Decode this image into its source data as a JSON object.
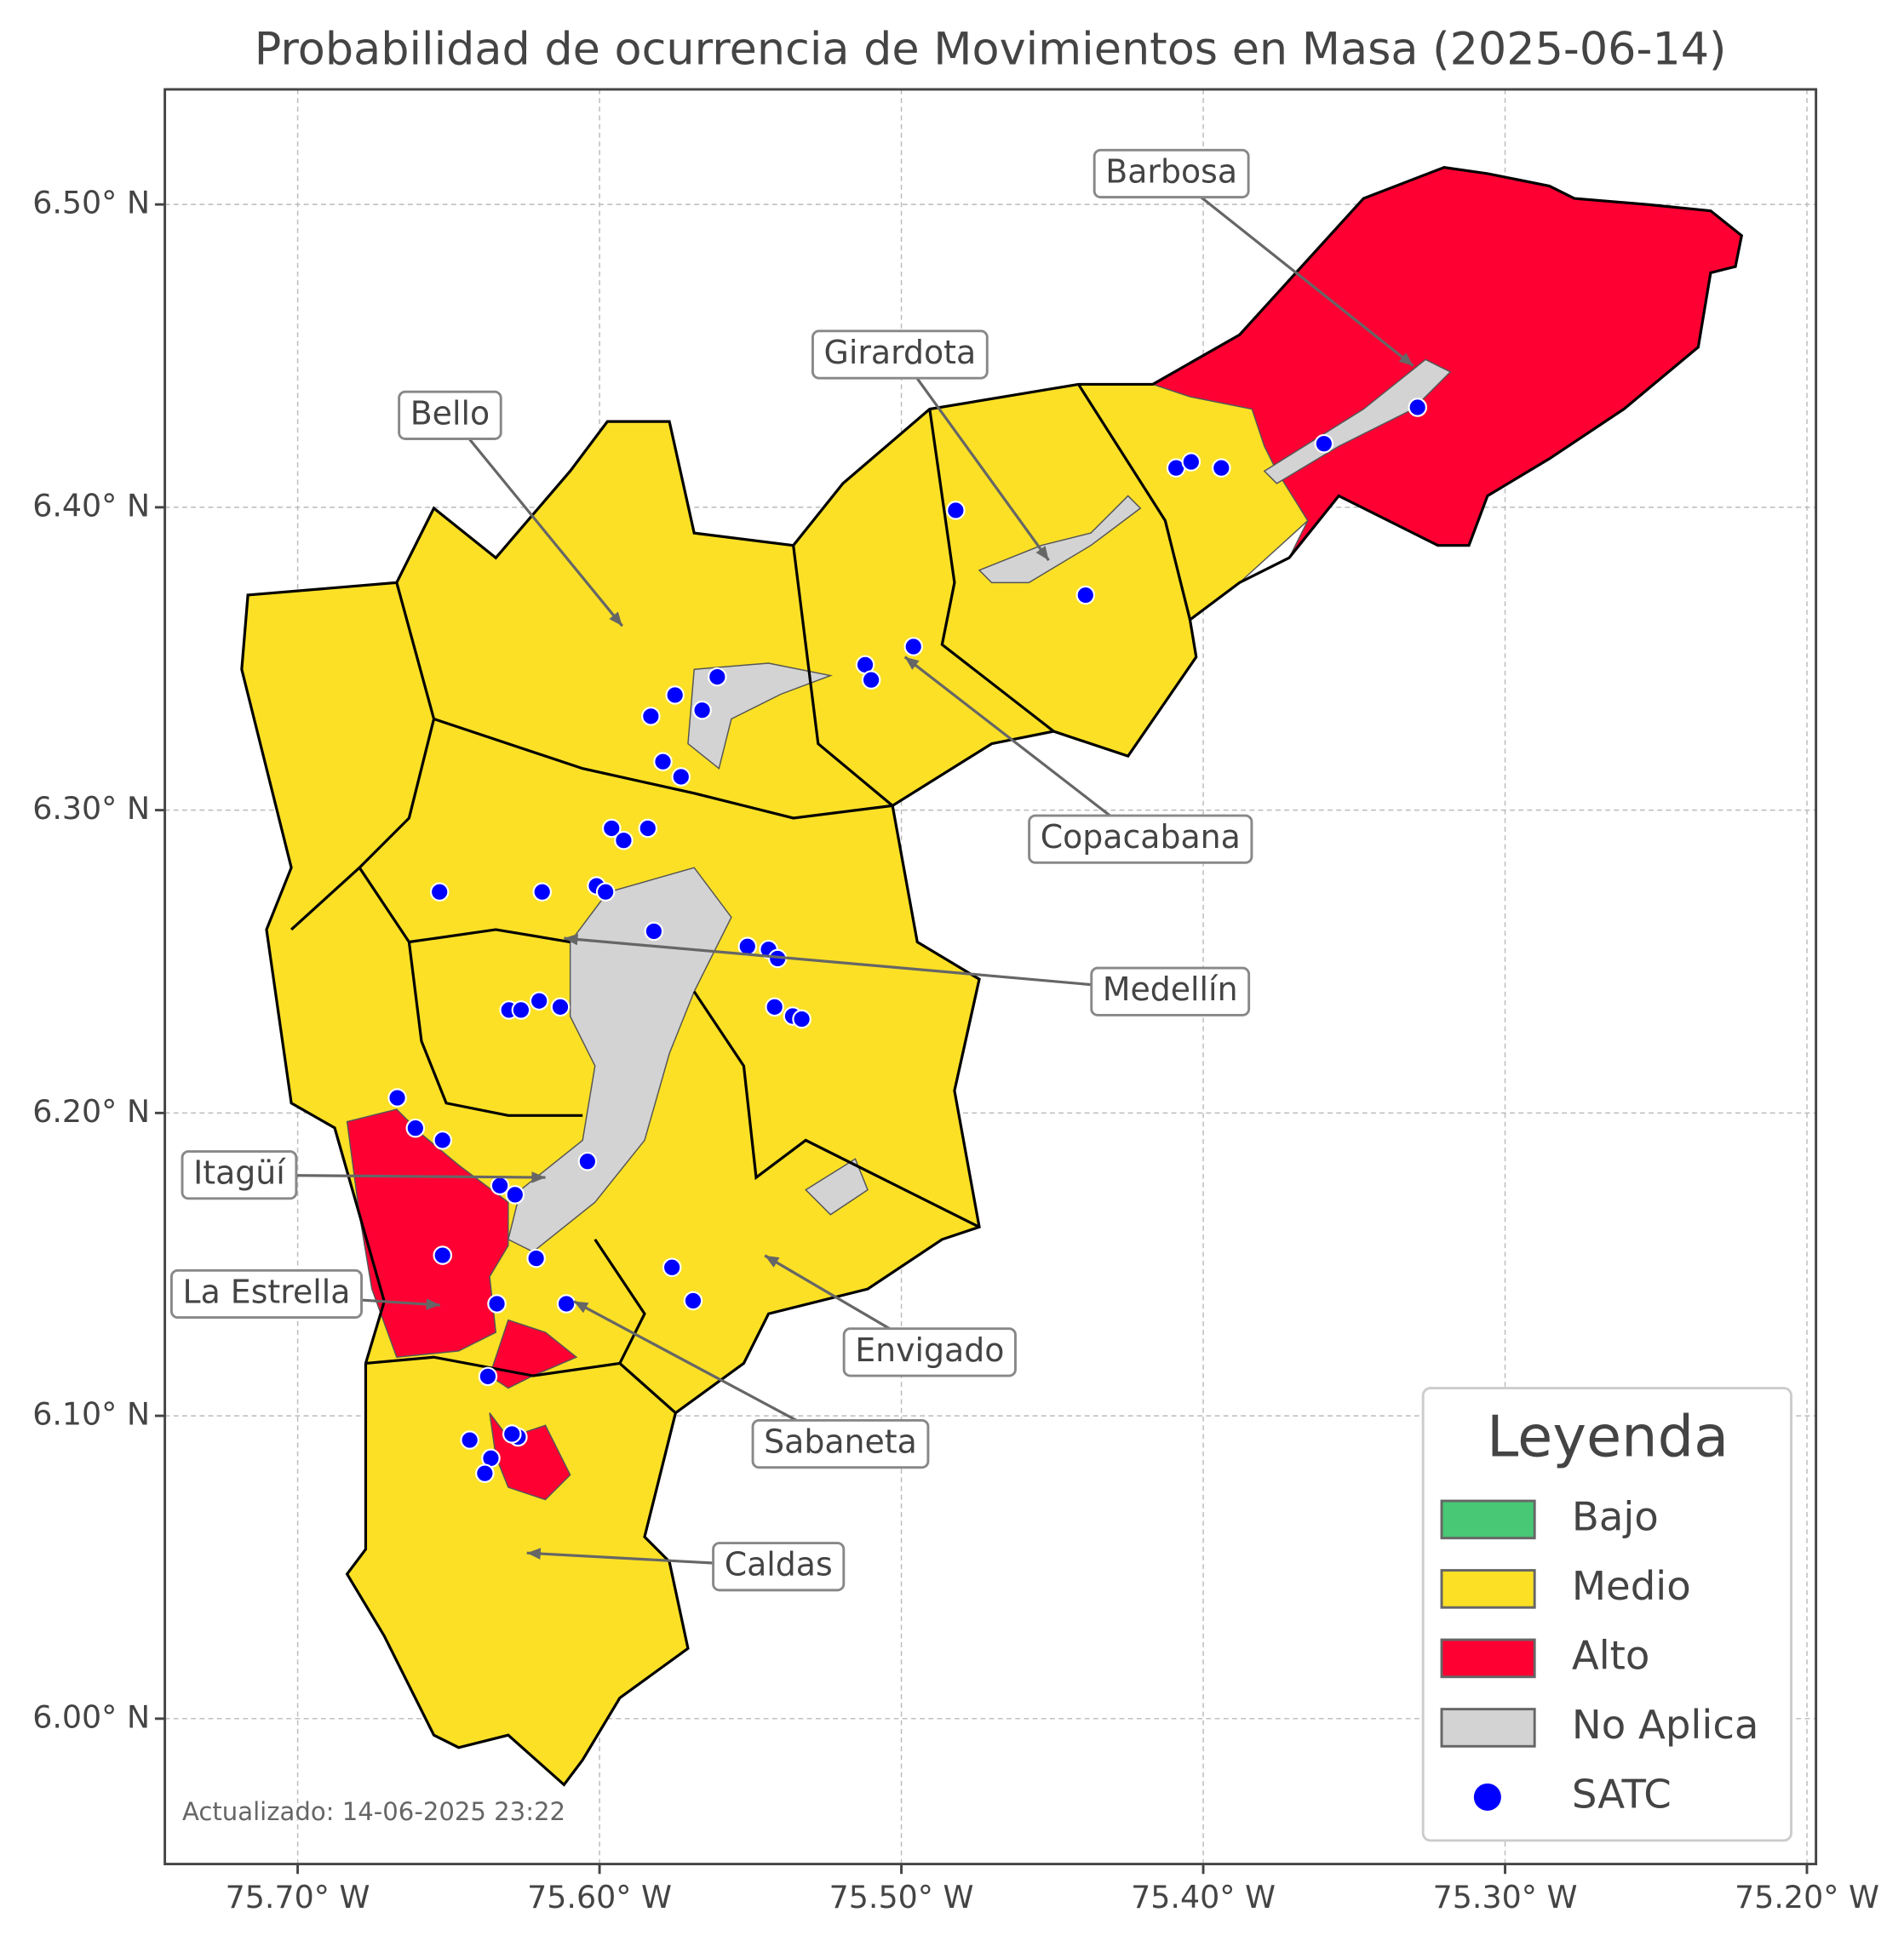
{
  "title": "Probabilidad de ocurrencia de Movimientos en Masa (2025-06-14)",
  "footnote": "Actualizado: 14-06-2025 23:22",
  "map": {
    "xlim": [
      -75.744,
      -75.197
    ],
    "ylim": [
      5.952,
      6.538
    ],
    "grid": true,
    "xticks": [
      {
        "value": -75.7,
        "label": "75.70° W"
      },
      {
        "value": -75.6,
        "label": "75.60° W"
      },
      {
        "value": -75.5,
        "label": "75.50° W"
      },
      {
        "value": -75.4,
        "label": "75.40° W"
      },
      {
        "value": -75.3,
        "label": "75.30° W"
      },
      {
        "value": -75.2,
        "label": "75.20° W"
      }
    ],
    "yticks": [
      {
        "value": 6.0,
        "label": "6.00° N"
      },
      {
        "value": 6.1,
        "label": "6.10° N"
      },
      {
        "value": 6.2,
        "label": "6.20° N"
      },
      {
        "value": 6.3,
        "label": "6.30° N"
      },
      {
        "value": 6.4,
        "label": "6.40° N"
      },
      {
        "value": 6.5,
        "label": "6.50° N"
      }
    ]
  },
  "legend": {
    "title": "Leyenda",
    "items": [
      {
        "label": "Bajo",
        "color": "#48c774"
      },
      {
        "label": "Medio",
        "color": "#fbe026"
      },
      {
        "label": "Alto",
        "color": "#ff0033"
      },
      {
        "label": "No Aplica",
        "color": "#d3d3d3"
      }
    ]
  },
  "satc": {
    "name": "SATC",
    "color": "#0000ff",
    "lon": [
      -75.329,
      -75.36,
      -75.409,
      -75.404,
      -75.394,
      -75.482,
      -75.439,
      -75.496,
      -75.512,
      -75.51,
      -75.561,
      -75.575,
      -75.583,
      -75.566,
      -75.579,
      -75.573,
      -75.596,
      -75.592,
      -75.584,
      -75.619,
      -75.601,
      -75.598,
      -75.582,
      -75.653,
      -75.551,
      -75.544,
      -75.541,
      -75.542,
      -75.536,
      -75.533,
      -75.63,
      -75.626,
      -75.62,
      -75.613,
      -75.667,
      -75.661,
      -75.652,
      -75.604,
      -75.633,
      -75.628,
      -75.621,
      -75.652,
      -75.576,
      -75.569,
      -75.634,
      -75.611,
      -75.637,
      -75.643,
      -75.627,
      -75.629,
      -75.636,
      -75.638
    ],
    "lat": [
      6.433,
      6.421,
      6.413,
      6.415,
      6.413,
      6.399,
      6.371,
      6.354,
      6.348,
      6.343,
      6.344,
      6.338,
      6.331,
      6.333,
      6.316,
      6.311,
      6.294,
      6.29,
      6.294,
      6.273,
      6.275,
      6.273,
      6.26,
      6.273,
      6.255,
      6.254,
      6.251,
      6.235,
      6.232,
      6.231,
      6.234,
      6.234,
      6.237,
      6.235,
      6.205,
      6.195,
      6.191,
      6.184,
      6.176,
      6.173,
      6.152,
      6.153,
      6.149,
      6.138,
      6.137,
      6.137,
      6.113,
      6.092,
      6.093,
      6.094,
      6.086,
      6.081
    ]
  },
  "annotations": [
    "Barbosa",
    "Girardota",
    "Bello",
    "Copacabana",
    "Medellín",
    "Itagüí",
    "La Estrella",
    "Envigado",
    "Sabaneta",
    "Caldas"
  ]
}
